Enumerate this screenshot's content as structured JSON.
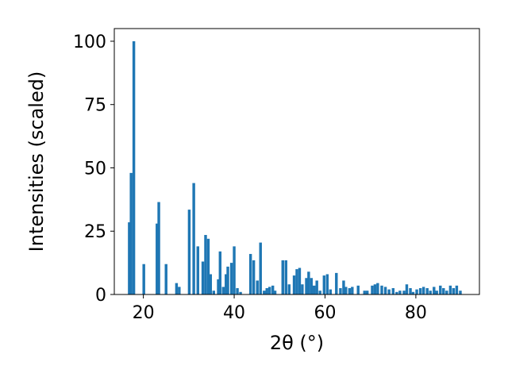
{
  "chart_data": {
    "type": "bar",
    "title": "",
    "xlabel": "2θ (°)",
    "ylabel": "Intensities (scaled)",
    "xlim": [
      13.6,
      94.0
    ],
    "ylim": [
      0,
      105
    ],
    "xticks": [
      20,
      40,
      60,
      80
    ],
    "yticks": [
      0,
      25,
      50,
      75,
      100
    ],
    "grid": false,
    "bar_color": "#1f77b4",
    "bar_width": 0.6,
    "x": [
      16.9,
      17.3,
      17.9,
      20.1,
      23.0,
      23.4,
      25.0,
      27.3,
      27.9,
      30.1,
      31.1,
      32.0,
      33.1,
      33.7,
      34.3,
      34.8,
      35.5,
      36.5,
      36.9,
      37.6,
      38.2,
      38.6,
      39.4,
      40.0,
      40.7,
      41.4,
      43.6,
      44.3,
      45.1,
      45.8,
      46.6,
      47.2,
      47.8,
      48.5,
      49.0,
      50.7,
      51.4,
      52.1,
      53.2,
      53.8,
      54.4,
      55.0,
      55.9,
      56.4,
      57.0,
      57.6,
      58.2,
      58.9,
      59.8,
      60.5,
      61.2,
      62.5,
      63.4,
      64.1,
      64.6,
      65.4,
      66.0,
      67.3,
      68.7,
      69.3,
      70.4,
      71.0,
      71.6,
      72.5,
      73.3,
      74.1,
      75.0,
      75.8,
      76.5,
      77.4,
      78.0,
      78.8,
      79.4,
      80.2,
      81.0,
      81.7,
      82.5,
      83.2,
      84.0,
      84.6,
      85.4,
      86.1,
      86.8,
      87.6,
      88.3,
      89.0,
      89.8
    ],
    "values": [
      28.5,
      48,
      100,
      12,
      28,
      36.5,
      12,
      4.5,
      3,
      33.5,
      44,
      19,
      13,
      23.5,
      22,
      8,
      1.5,
      6,
      17,
      3,
      8,
      11,
      12.5,
      19,
      2.5,
      1,
      16,
      13.5,
      5.5,
      20.5,
      1.5,
      2.5,
      3,
      3.5,
      1.5,
      13.5,
      13.5,
      4,
      7.5,
      10,
      10.5,
      4,
      6.5,
      9,
      6.5,
      3.5,
      5.5,
      1.5,
      7.5,
      8,
      2,
      8.5,
      2.5,
      5.5,
      3,
      2.5,
      3,
      3.5,
      1.5,
      1.5,
      3.5,
      4,
      4.5,
      3.5,
      3,
      2,
      2.5,
      1,
      1.5,
      1.5,
      4,
      2.5,
      1,
      2,
      2.5,
      3,
      2.5,
      1.5,
      3,
      1.5,
      3.5,
      2.5,
      1.5,
      3.5,
      2.5,
      3.5,
      1.5
    ]
  }
}
